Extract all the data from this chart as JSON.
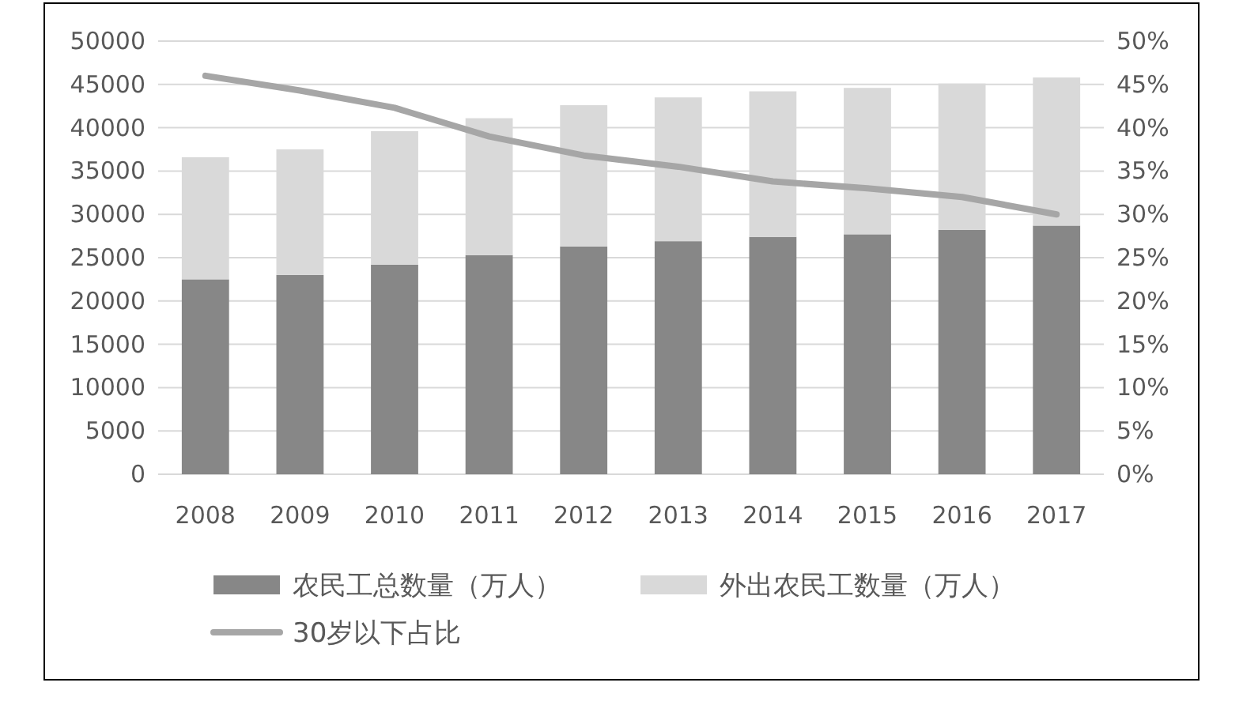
{
  "chart_data": {
    "type": "bar",
    "stacked": true,
    "categories": [
      "2008",
      "2009",
      "2010",
      "2011",
      "2012",
      "2013",
      "2014",
      "2015",
      "2016",
      "2017"
    ],
    "series": [
      {
        "name": "农民工总数量（万人）",
        "color": "#878787",
        "values": [
          22500,
          23000,
          24200,
          25300,
          26300,
          26900,
          27400,
          27700,
          28200,
          28700
        ]
      },
      {
        "name": "外出农民工数量（万人）",
        "color": "#d9d9d9",
        "values": [
          14100,
          14500,
          15400,
          15800,
          16300,
          16600,
          16800,
          16900,
          16900,
          17100
        ]
      },
      {
        "name": "30岁以下占比",
        "type": "line",
        "axis": "y2",
        "color": "#a6a6a6",
        "values": [
          46,
          44.3,
          42.3,
          39,
          36.8,
          35.5,
          33.8,
          33,
          32,
          30
        ]
      }
    ],
    "ylim": [
      0,
      50000
    ],
    "yticks": [
      0,
      5000,
      10000,
      15000,
      20000,
      25000,
      30000,
      35000,
      40000,
      45000,
      50000
    ],
    "y2lim": [
      0,
      50
    ],
    "y2ticks": [
      {
        "value": 0,
        "label": "0%"
      },
      {
        "value": 5,
        "label": "5%"
      },
      {
        "value": 10,
        "label": "10%"
      },
      {
        "value": 15,
        "label": "15%"
      },
      {
        "value": 20,
        "label": "20%"
      },
      {
        "value": 25,
        "label": "25%"
      },
      {
        "value": 30,
        "label": "30%"
      },
      {
        "value": 35,
        "label": "35%"
      },
      {
        "value": 40,
        "label": "40%"
      },
      {
        "value": 45,
        "label": "45%"
      },
      {
        "value": 50,
        "label": "50%"
      }
    ],
    "grid": "y",
    "legend": "bottom"
  }
}
